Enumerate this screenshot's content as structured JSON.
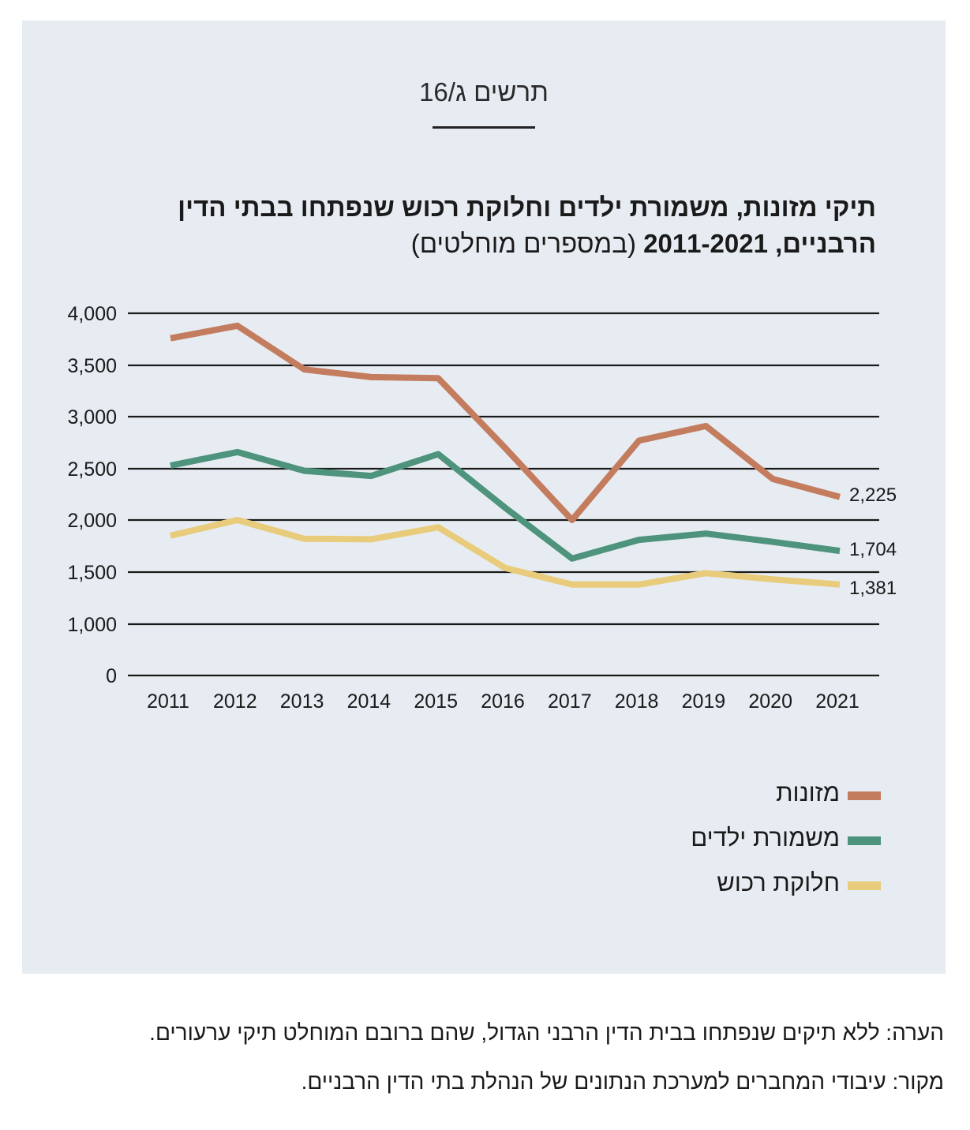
{
  "figure_label": "תרשים ג/16",
  "title_bold_1": "תיקי מזונות, משמורת ילדים וחלוקת רכוש שנפתחו בבתי הדין",
  "title_bold_2": "הרבניים, 2011-2021",
  "title_light": "(במספרים מוחלטים)",
  "colors": {
    "panel": "#e7ecf2",
    "mezonot": "#c47c5e",
    "mishmoret": "#4e937b",
    "rechush": "#e8cc7c"
  },
  "chart_data": {
    "type": "line",
    "title": "תיקי מזונות, משמורת ילדים וחלוקת רכוש שנפתחו בבתי הדין הרבניים, 2011-2021 (במספרים מוחלטים)",
    "x": [
      "2011",
      "2012",
      "2013",
      "2014",
      "2015",
      "2016",
      "2017",
      "2018",
      "2019",
      "2020",
      "2021"
    ],
    "y_ticks": [
      "0",
      "1,000",
      "1,500",
      "2,000",
      "2,500",
      "3,000",
      "3,500",
      "4,000"
    ],
    "y_tick_values": [
      0,
      1000,
      1500,
      2000,
      2500,
      3000,
      3500,
      4000
    ],
    "ylim": [
      0,
      4000
    ],
    "grid": true,
    "legend_position": "bottom-right",
    "series": [
      {
        "name": "מזונות",
        "color": "#c47c5e",
        "values": [
          3760,
          3880,
          3460,
          3385,
          3375,
          2700,
          2000,
          2770,
          2910,
          2400,
          2225
        ],
        "end_label": "2,225"
      },
      {
        "name": "משמורת ילדים",
        "color": "#4e937b",
        "values": [
          2530,
          2660,
          2480,
          2430,
          2640,
          2120,
          1630,
          1810,
          1870,
          1790,
          1704
        ],
        "end_label": "1,704"
      },
      {
        "name": "חלוקת רכוש",
        "color": "#e8cc7c",
        "values": [
          1850,
          2000,
          1820,
          1815,
          1930,
          1540,
          1380,
          1380,
          1490,
          1430,
          1381
        ],
        "end_label": "1,381"
      }
    ]
  },
  "note": "הערה: ללא תיקים שנפתחו בבית הדין הרבני הגדול, שהם ברובם המוחלט תיקי ערעורים.",
  "source": "מקור: עיבודי המחברים למערכת הנתונים של הנהלת בתי הדין הרבניים."
}
